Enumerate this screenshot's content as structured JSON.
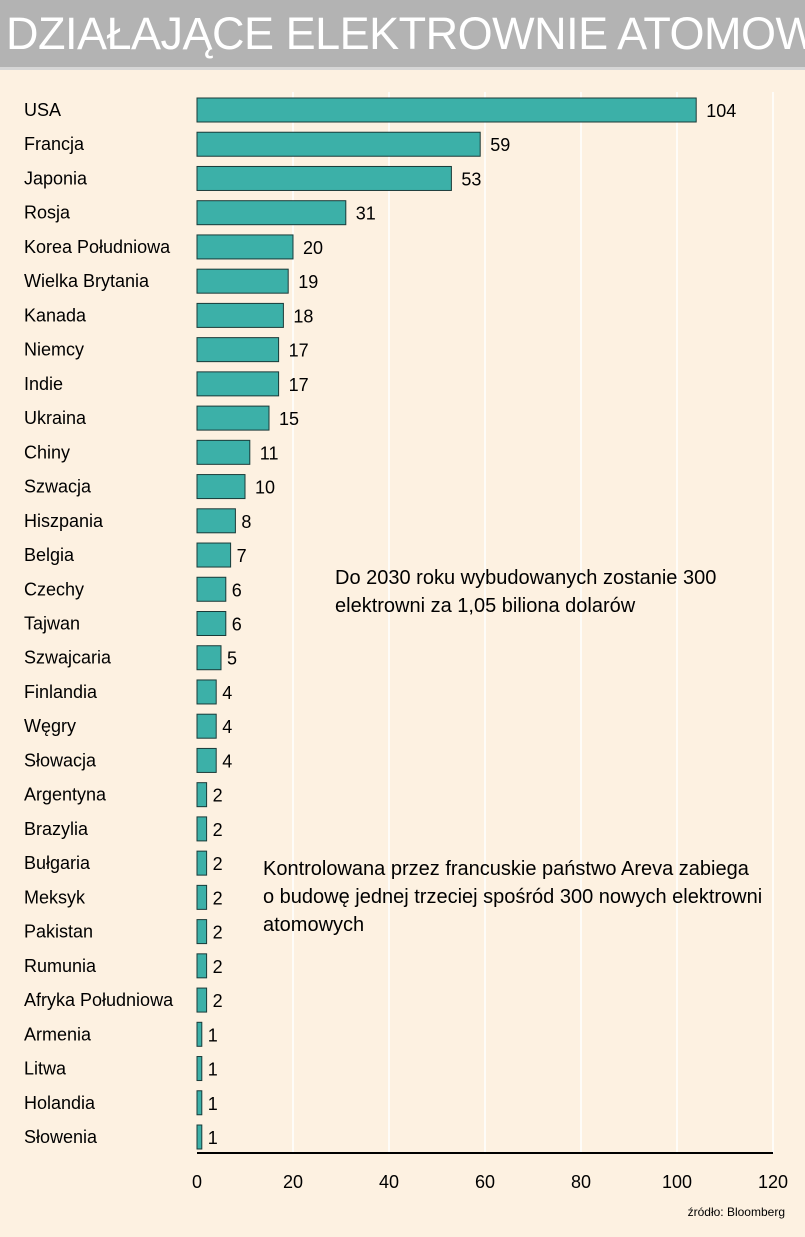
{
  "chart_data": {
    "type": "bar",
    "orientation": "horizontal",
    "title": "DZIAŁAJĄCE ELEKTROWNIE ATOMOWE",
    "categories": [
      "USA",
      "Francja",
      "Japonia",
      "Rosja",
      "Korea Południowa",
      "Wielka Brytania",
      "Kanada",
      "Niemcy",
      "Indie",
      "Ukraina",
      "Chiny",
      "Szwacja",
      "Hiszpania",
      "Belgia",
      "Czechy",
      "Tajwan",
      "Szwajcaria",
      "Finlandia",
      "Węgry",
      "Słowacja",
      "Argentyna",
      "Brazylia",
      "Bułgaria",
      "Meksyk",
      "Pakistan",
      "Rumunia",
      "Afryka Południowa",
      "Armenia",
      "Litwa",
      "Holandia",
      "Słowenia"
    ],
    "values": [
      104,
      59,
      53,
      31,
      20,
      19,
      18,
      17,
      17,
      15,
      11,
      10,
      8,
      7,
      6,
      6,
      5,
      4,
      4,
      4,
      2,
      2,
      2,
      2,
      2,
      2,
      2,
      1,
      1,
      1,
      1
    ],
    "xlim": [
      0,
      120
    ],
    "xticks": [
      0,
      20,
      40,
      60,
      80,
      100,
      120
    ],
    "grid": true,
    "bar_color": "#3cb0a8",
    "annotations": [
      "Do 2030 roku wybudowanych zostanie 300 elektrowni za 1,05 biliona dolarów",
      "Kontrolowana przez francuskie państwo Areva zabiega o budowę jednej trzeciej spośród 300 nowych elektrowni atomowych"
    ],
    "source": "źródło: Bloomberg"
  }
}
